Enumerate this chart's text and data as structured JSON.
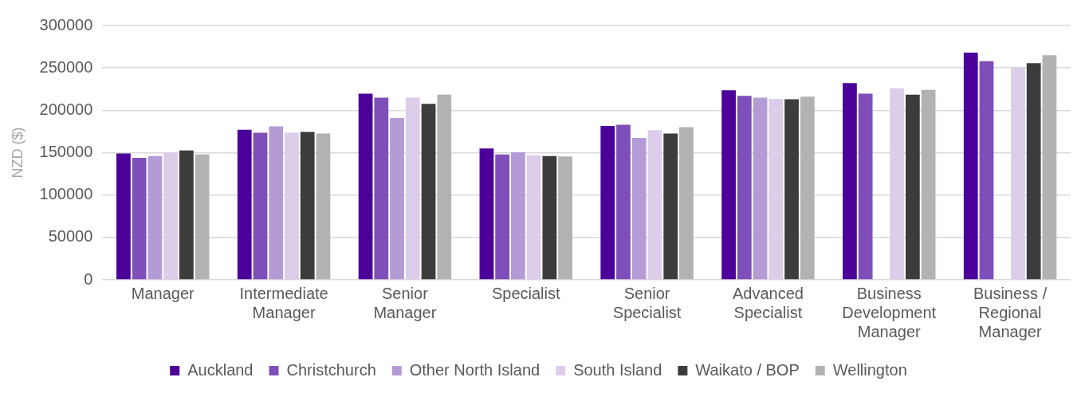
{
  "chart_data": {
    "type": "bar",
    "ylabel": "NZD ($)",
    "categories": [
      "Manager",
      "Intermediate Manager",
      "Senior Manager",
      "Specialist",
      "Senior Specialist",
      "Advanced Specialist",
      "Business Development Manager",
      "Business / Regional Manager"
    ],
    "series": [
      {
        "name": "Auckland",
        "color": "#4b0099",
        "values": [
          149000,
          177000,
          219500,
          155000,
          181500,
          223500,
          232000,
          268000
        ]
      },
      {
        "name": "Christchurch",
        "color": "#7e4fb8",
        "values": [
          144000,
          173500,
          215000,
          148000,
          183000,
          217000,
          219500,
          258000
        ]
      },
      {
        "name": "Other North Island",
        "color": "#b49bd6",
        "values": [
          146000,
          181000,
          191000,
          150500,
          167500,
          215000,
          null,
          null
        ]
      },
      {
        "name": "South Island",
        "color": "#dccdeb",
        "values": [
          150000,
          173500,
          215000,
          147000,
          176500,
          213500,
          226000,
          250500
        ]
      },
      {
        "name": "Waikato / BOP",
        "color": "#3c3c3c",
        "values": [
          152500,
          174500,
          207500,
          146000,
          172500,
          213000,
          218500,
          255500
        ]
      },
      {
        "name": "Wellington",
        "color": "#b3b1b3",
        "values": [
          148000,
          172500,
          218500,
          145500,
          180000,
          216000,
          224000,
          265000
        ]
      }
    ],
    "ylim": [
      0,
      300000
    ],
    "yticks": [
      0,
      50000,
      100000,
      150000,
      200000,
      250000,
      300000
    ],
    "grid": "y",
    "legend": "bottom"
  }
}
